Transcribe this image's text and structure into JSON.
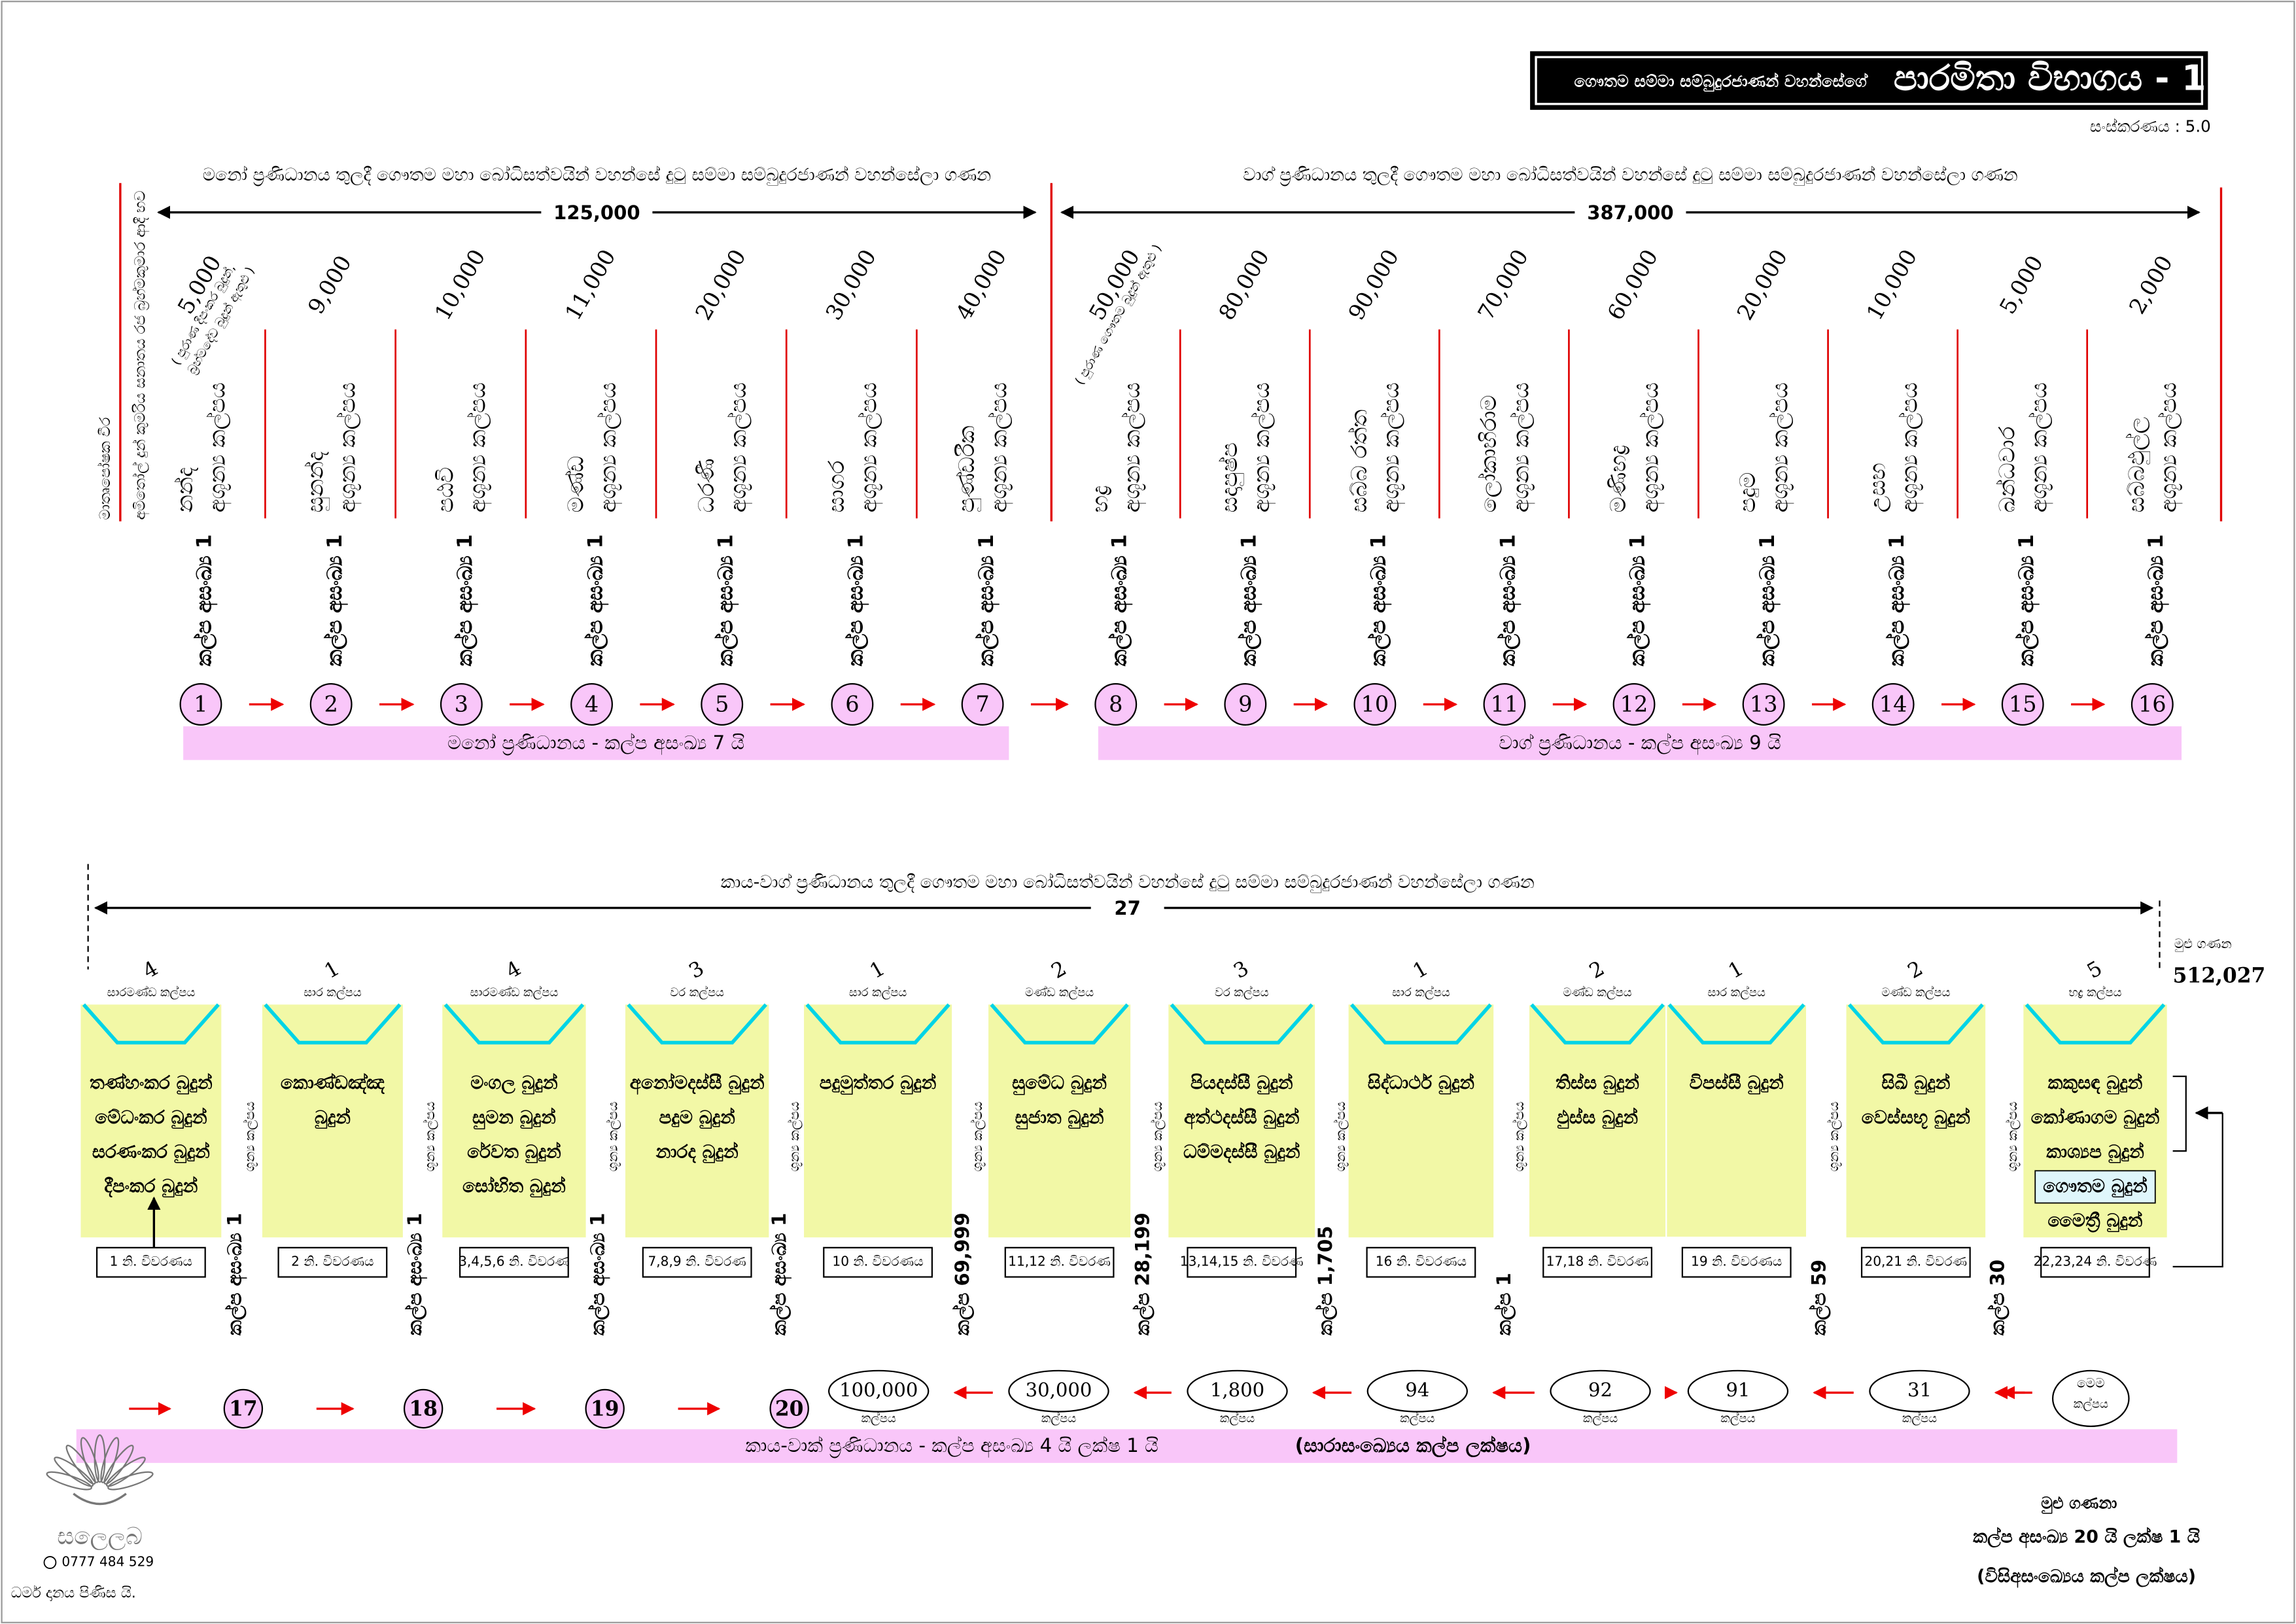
{
  "header": {
    "title_prefix": "ගෞතම සම්මා සම්බුදුරජාණන් වහන්සේගේ",
    "title_main": "පාරමිතා විභාගය - 1",
    "version": "සංස්කරණය : 5.0"
  },
  "side_labels": [
    "මාතෘපෝෂක වීර",
    "අමිතෝල් දුන් කුමරිය සනාතය රජ බ්‍රහ්මකුමාර ආදී භව"
  ],
  "upper": {
    "spans": [
      {
        "heading": "මනෝ ප්‍රණිධානය තුලදී ගෞතම මහා බෝධිසත්වයින් වහන්සේ දුටු සම්මා සම්බුදුරජාණන් වහන්සේලා ගණන",
        "count": "125,000"
      },
      {
        "heading": "වාග් ප්‍රණිධානය තුලදී ගෞතම මහා බෝධිසත්වයින් වහන්සේ දුටු සම්මා සම්බුදුරජාණන් වහන්සේලා ගණන",
        "count": "387,000"
      }
    ],
    "columns": [
      {
        "count": "5,000",
        "note": [
          "( පුරාණ දීපංකර බුදුන්,",
          "බ්‍රහ්මදේව බුදුන් ඇතුළු )"
        ],
        "kalpa": "නන්ද",
        "kind": "අශූන්‍ය කල්පය",
        "period": "කල්ප අසංඛ්‍ය 1",
        "step": 1
      },
      {
        "count": "9,000",
        "kalpa": "සුනන්ද",
        "kind": "අශූන්‍ය කල්පය",
        "period": "කල්ප අසංඛ්‍ය 1",
        "step": 2
      },
      {
        "count": "10,000",
        "kalpa": "පඨවි",
        "kind": "අශූන්‍ය කල්පය",
        "period": "කල්ප අසංඛ්‍ය 1",
        "step": 3
      },
      {
        "count": "11,000",
        "kalpa": "මණ්ඩ",
        "kind": "අශූන්‍ය කල්පය",
        "period": "කල්ප අසංඛ්‍ය 1",
        "step": 4
      },
      {
        "count": "20,000",
        "kalpa": "ධරණී",
        "kind": "අශූන්‍ය කල්පය",
        "period": "කල්ප අසංඛ්‍ය 1",
        "step": 5
      },
      {
        "count": "30,000",
        "kalpa": "සාගර",
        "kind": "අශූන්‍ය කල්පය",
        "period": "කල්ප අසංඛ්‍ය 1",
        "step": 6
      },
      {
        "count": "40,000",
        "kalpa": "පුණ්ඩරීක",
        "kind": "අශූන්‍ය කල්පය",
        "period": "කල්ප අසංඛ්‍ය 1",
        "step": 7
      },
      {
        "count": "50,000",
        "note": [
          "( පුරාණ ගෞතම බුදුන් ඇතුළු )"
        ],
        "kalpa": "භද්‍ර",
        "kind": "අශූන්‍ය කල්පය",
        "period": "කල්ප අසංඛ්‍ය 1",
        "step": 8
      },
      {
        "count": "80,000",
        "kalpa": "සදාපුෂ්ප",
        "kind": "අශූන්‍ය කල්පය",
        "period": "කල්ප අසංඛ්‍ය 1",
        "step": 9
      },
      {
        "count": "90,000",
        "kalpa": "සබ්බ රත්ත",
        "kind": "අශූන්‍ය කල්පය",
        "period": "කල්ප අසංඛ්‍ය 1",
        "step": 10
      },
      {
        "count": "70,000",
        "kalpa": "ලෝකාභිරාම",
        "kind": "අශූන්‍ය කල්පය",
        "period": "කල්ප අසංඛ්‍ය 1",
        "step": 11
      },
      {
        "count": "60,000",
        "kalpa": "මණිභද්‍ර",
        "kind": "අශූන්‍ය කල්පය",
        "period": "කල්ප අසංඛ්‍ය 1",
        "step": 12
      },
      {
        "count": "20,000",
        "kalpa": "පදුම",
        "kind": "අශූන්‍ය කල්පය",
        "period": "කල්ප අසංඛ්‍ය 1",
        "step": 13
      },
      {
        "count": "10,000",
        "kalpa": "උසභ",
        "kind": "අශූන්‍ය කල්පය",
        "period": "කල්ප අසංඛ්‍ය 1",
        "step": 14
      },
      {
        "count": "5,000",
        "kalpa": "ඛන්ධවාර",
        "kind": "අශූන්‍ය කල්පය",
        "period": "කල්ප අසංඛ්‍ය 1",
        "step": 15
      },
      {
        "count": "2,000",
        "kalpa": "සබ්බඵුල්ල",
        "kind": "අශූන්‍ය කල්පය",
        "period": "කල්ප අසංඛ්‍ය 1",
        "step": 16
      }
    ],
    "bars": [
      "මනෝ ප්‍රණිධානය  -  කල්ප අසංඛ්‍ය 7 යි",
      "වාග් ප්‍රණිධානය  -  කල්ප අසංඛ්‍ය 9 යි"
    ]
  },
  "lower": {
    "heading": "කාය-වාග් ප්‍රණිධානය තුලදී ගෞතම මහා බෝධිසත්වයින් වහන්සේ දුටු සම්මා සම්බුදුරජාණන් වහන්සේලා ගණන",
    "count": "27",
    "total_label": "මුළු ගණන",
    "total": "512,027",
    "boxes": [
      {
        "count": 4,
        "kind": "සාරමණ්ඩ කල්පය",
        "buddhas": [
          "තණ්හංකර බුදුන්",
          "මේධංකර බුදුන්",
          "සරණංකර බුදුන්",
          "දීපංකර බුදුන්"
        ],
        "ref": "1 නි. විවරණය"
      },
      {
        "count": 1,
        "kind": "සාර කල්පය",
        "buddhas": [
          "කොණ්ඩඤ්ඤ",
          "බුදුන්"
        ],
        "ref": "2 නි. විවරණය"
      },
      {
        "count": 4,
        "kind": "සාරමණ්ඩ කල්පය",
        "buddhas": [
          "මංගල බුදුන්",
          "සුමන බුදුන්",
          "රේවත බුදුන්",
          "සෝභිත බුදුන්"
        ],
        "ref": "3,4,5,6 නි. විවරණ"
      },
      {
        "count": 3,
        "kind": "වර කල්පය",
        "buddhas": [
          "අනෝමදස්සී බුදුන්",
          "පදුම බුදුන්",
          "නාරද බුදුන්"
        ],
        "ref": "7,8,9 නි. විවරණ"
      },
      {
        "count": 1,
        "kind": "සාර කල්පය",
        "buddhas": [
          "පදුමුත්තර බුදුන්"
        ],
        "ref": "10 නි. විවරණය"
      },
      {
        "count": 2,
        "kind": "මණ්ඩ කල්පය",
        "buddhas": [
          "සුමේධ බුදුන්",
          "සුජාත බුදුන්"
        ],
        "ref": "11,12 නි. විවරණ"
      },
      {
        "count": 3,
        "kind": "වර කල්පය",
        "buddhas": [
          "පියදස්සී බුදුන්",
          "අත්ථදස්සී බුදුන්",
          "ධම්මදස්සී බුදුන්"
        ],
        "ref": "13,14,15 නි. විවරණ"
      },
      {
        "count": 1,
        "kind": "සාර කල්පය",
        "buddhas": [
          "සිද්ධාර්ථ බුදුන්"
        ],
        "ref": "16 නි. විවරණය"
      },
      {
        "count": 2,
        "kind": "මණ්ඩ කල්පය",
        "buddhas": [
          "තිස්ස බුදුන්",
          "ඵුස්ස බුදුන්"
        ],
        "ref": "17,18 නි. විවරණ"
      },
      {
        "count": 1,
        "kind": "සාර කල්පය",
        "buddhas": [
          "විපස්සී බුදුන්"
        ],
        "ref": "19 නි. විවරණය"
      },
      {
        "count": 2,
        "kind": "මණ්ඩ කල්පය",
        "buddhas": [
          "සිඛී බුදුන්",
          "වෙස්සභූ බුදුන්"
        ],
        "ref": "20,21 නි. විවරණ"
      },
      {
        "count": 5,
        "kind": "භද්‍ර කල්පය",
        "buddhas": [
          "කකුසඳ බුදුන්",
          "කෝණාගම බුදුන්",
          "කාශ්‍යප බුදුන්",
          "ගෞතම බුදුන්",
          "මෛත්‍රී බුදුන්"
        ],
        "ref": "22,23,24 නි. විවරණ"
      }
    ],
    "gaps": [
      {
        "kind": "ශූන්‍ය කල්පය",
        "span": "කල්ප අසංඛ්‍ය 1"
      },
      {
        "kind": "ශූන්‍ය කල්පය",
        "span": "කල්ප අසංඛ්‍ය 1"
      },
      {
        "kind": "ශූන්‍ය කල්පය",
        "span": "කල්ප අසංඛ්‍ය 1"
      },
      {
        "kind": "ශූන්‍ය කල්පය",
        "span": "කල්ප අසංඛ්‍ය 1"
      },
      {
        "kind": "ශූන්‍ය කල්පය",
        "span": "කල්ප 69,999"
      },
      {
        "kind": "ශූන්‍ය කල්පය",
        "span": "කල්ප 28,199"
      },
      {
        "kind": "ශූන්‍ය කල්පය",
        "span": "කල්ප 1,705"
      },
      {
        "kind": "ශූන්‍ය කල්පය",
        "span": "කල්ප 1"
      },
      {
        "kind": "ශූන්‍ය කල්පය",
        "span": "කල්ප 59"
      },
      {
        "kind": "ශූන්‍ය කල්පය",
        "span": "කල්ප 30"
      }
    ],
    "steps": [
      17,
      18,
      19,
      20
    ],
    "ovals": [
      {
        "count": "100,000",
        "unit": "කල්පය"
      },
      {
        "count": "30,000",
        "unit": "කල්පය"
      },
      {
        "count": "1,800",
        "unit": "කල්පය"
      },
      {
        "count": "94",
        "unit": "කල්පය"
      },
      {
        "count": "92",
        "unit": "කල්පය"
      },
      {
        "count": "91",
        "unit": "කල්පය"
      },
      {
        "count": "31",
        "unit": "කල්පය"
      },
      {
        "count": "මෙම",
        "unit": "කල්පය"
      }
    ],
    "bar": "කාය-වාක් ප්‍රණිධානය  -  කල්ප අසංඛ්‍ය 4 යි ලක්ෂ 1 යි",
    "bar_note": "(සාරාසංඛ්‍යෙය කල්ප ලක්ෂය)"
  },
  "footer": {
    "total_label": "මුළු ගණනා",
    "total": "කල්ප අසංඛ්‍ය 20 යි ලක්ෂ 1 යි",
    "total_note": "(විසිඅසංඛ්‍යෙය කල්ප ලක්ෂය)",
    "logo": "සලෙලබ",
    "phone": "0777 484 529",
    "dedication": "ධර්ම දානය පිණිස යි."
  }
}
